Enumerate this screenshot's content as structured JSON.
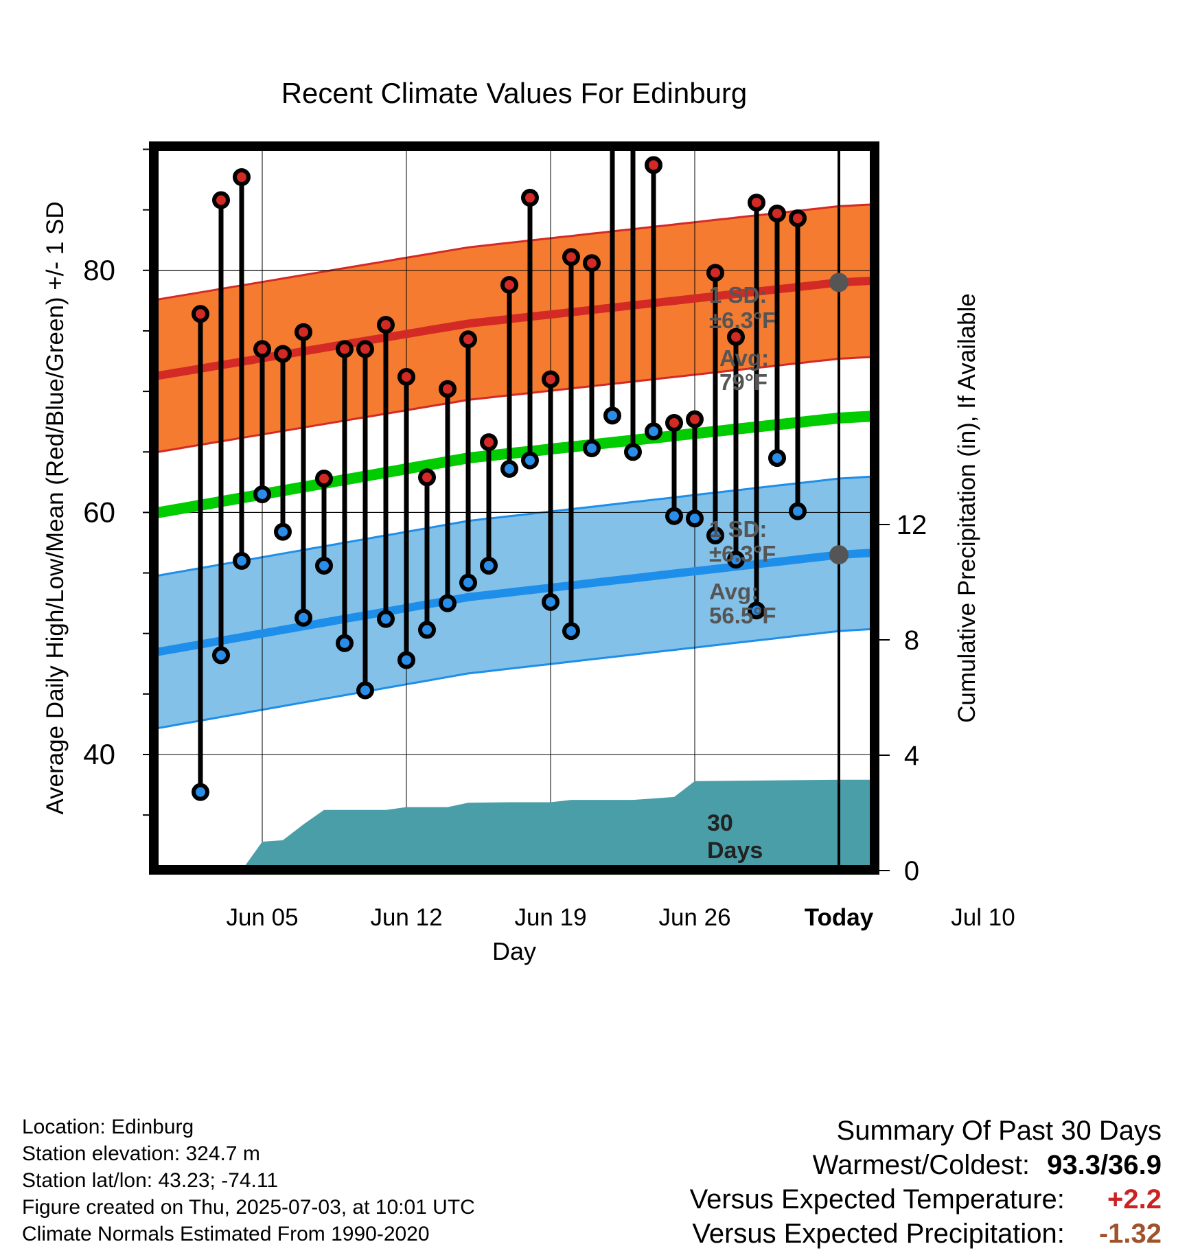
{
  "chart_data": {
    "type": "line",
    "title": "Recent Climate Values For Edinburg",
    "xlabel": "Day",
    "ylabel_left": "Average Daily High/Low/Mean (Red/Blue/Green) +/- 1 SD",
    "ylabel_right": "Cumulative Precipitation (in), If Available",
    "x_tick_labels": [
      "Jun 05",
      "Jun 12",
      "Jun 19",
      "Jun 26",
      "Today",
      "Jul 10"
    ],
    "y_ticks_left": [
      "40",
      "60",
      "80"
    ],
    "y_ticks_right": [
      "0",
      "4",
      "8",
      "12"
    ],
    "ylim_left": [
      30,
      100
    ],
    "ylim_right": [
      0,
      25
    ],
    "x_range_days": [
      "2025-06-01",
      "2025-07-12"
    ],
    "today": "2025-07-03",
    "daily_highs": [
      {
        "date": "2025-06-02",
        "value": 76.4
      },
      {
        "date": "2025-06-03",
        "value": 85.8
      },
      {
        "date": "2025-06-04",
        "value": 87.7
      },
      {
        "date": "2025-06-05",
        "value": 73.5
      },
      {
        "date": "2025-06-06",
        "value": 73.1
      },
      {
        "date": "2025-06-07",
        "value": 74.9
      },
      {
        "date": "2025-06-08",
        "value": 62.8
      },
      {
        "date": "2025-06-09",
        "value": 73.5
      },
      {
        "date": "2025-06-10",
        "value": 73.5
      },
      {
        "date": "2025-06-11",
        "value": 75.5
      },
      {
        "date": "2025-06-12",
        "value": 71.2
      },
      {
        "date": "2025-06-13",
        "value": 62.9
      },
      {
        "date": "2025-06-14",
        "value": 70.2
      },
      {
        "date": "2025-06-15",
        "value": 74.3
      },
      {
        "date": "2025-06-16",
        "value": 65.8
      },
      {
        "date": "2025-06-17",
        "value": 78.8
      },
      {
        "date": "2025-06-18",
        "value": 86.0
      },
      {
        "date": "2025-06-19",
        "value": 71.0
      },
      {
        "date": "2025-06-20",
        "value": 81.1
      },
      {
        "date": "2025-06-21",
        "value": 80.6
      },
      {
        "date": "2025-06-22",
        "value": 93.3
      },
      {
        "date": "2025-06-23",
        "value": 93.2
      },
      {
        "date": "2025-06-24",
        "value": 88.7
      },
      {
        "date": "2025-06-25",
        "value": 67.4
      },
      {
        "date": "2025-06-26",
        "value": 67.7
      },
      {
        "date": "2025-06-27",
        "value": 79.8
      },
      {
        "date": "2025-06-28",
        "value": 74.5
      },
      {
        "date": "2025-06-29",
        "value": 85.6
      },
      {
        "date": "2025-06-30",
        "value": 84.7
      },
      {
        "date": "2025-07-01",
        "value": 84.3
      }
    ],
    "daily_lows": [
      {
        "date": "2025-06-02",
        "value": 36.9
      },
      {
        "date": "2025-06-03",
        "value": 48.2
      },
      {
        "date": "2025-06-04",
        "value": 56.0
      },
      {
        "date": "2025-06-05",
        "value": 61.5
      },
      {
        "date": "2025-06-06",
        "value": 58.4
      },
      {
        "date": "2025-06-07",
        "value": 51.3
      },
      {
        "date": "2025-06-08",
        "value": 55.6
      },
      {
        "date": "2025-06-09",
        "value": 49.2
      },
      {
        "date": "2025-06-10",
        "value": 45.3
      },
      {
        "date": "2025-06-11",
        "value": 51.2
      },
      {
        "date": "2025-06-12",
        "value": 47.8
      },
      {
        "date": "2025-06-13",
        "value": 50.3
      },
      {
        "date": "2025-06-14",
        "value": 52.5
      },
      {
        "date": "2025-06-15",
        "value": 54.2
      },
      {
        "date": "2025-06-16",
        "value": 55.6
      },
      {
        "date": "2025-06-17",
        "value": 63.6
      },
      {
        "date": "2025-06-18",
        "value": 64.3
      },
      {
        "date": "2025-06-19",
        "value": 52.6
      },
      {
        "date": "2025-06-20",
        "value": 50.2
      },
      {
        "date": "2025-06-21",
        "value": 65.3
      },
      {
        "date": "2025-06-22",
        "value": 68.0
      },
      {
        "date": "2025-06-23",
        "value": 65.0
      },
      {
        "date": "2025-06-24",
        "value": 66.7
      },
      {
        "date": "2025-06-25",
        "value": 59.7
      },
      {
        "date": "2025-06-26",
        "value": 59.5
      },
      {
        "date": "2025-06-27",
        "value": 58.1
      },
      {
        "date": "2025-06-28",
        "value": 56.1
      },
      {
        "date": "2025-06-29",
        "value": 51.9
      },
      {
        "date": "2025-06-30",
        "value": 64.5
      },
      {
        "date": "2025-07-01",
        "value": 60.1
      }
    ],
    "normal_high": [
      {
        "date": "2025-06-01",
        "value": 71.6
      },
      {
        "date": "2025-06-15",
        "value": 75.6
      },
      {
        "date": "2025-07-03",
        "value": 79.0
      },
      {
        "date": "2025-07-12",
        "value": 79.8
      }
    ],
    "normal_low": [
      {
        "date": "2025-06-01",
        "value": 48.8
      },
      {
        "date": "2025-06-15",
        "value": 53.0
      },
      {
        "date": "2025-07-03",
        "value": 56.5
      },
      {
        "date": "2025-07-12",
        "value": 57.4
      }
    ],
    "normal_mean": [
      {
        "date": "2025-06-01",
        "value": 60.3
      },
      {
        "date": "2025-06-15",
        "value": 64.5
      },
      {
        "date": "2025-07-03",
        "value": 67.8
      },
      {
        "date": "2025-07-12",
        "value": 68.6
      }
    ],
    "sd_band_f": 6.3,
    "cumulative_precipitation_in": [
      {
        "date": "2025-06-01",
        "value": 0.0
      },
      {
        "date": "2025-06-04",
        "value": 0.0
      },
      {
        "date": "2025-06-05",
        "value": 1.0
      },
      {
        "date": "2025-06-06",
        "value": 1.05
      },
      {
        "date": "2025-06-07",
        "value": 1.6
      },
      {
        "date": "2025-06-08",
        "value": 2.1
      },
      {
        "date": "2025-06-11",
        "value": 2.1
      },
      {
        "date": "2025-06-12",
        "value": 2.2
      },
      {
        "date": "2025-06-14",
        "value": 2.2
      },
      {
        "date": "2025-06-15",
        "value": 2.35
      },
      {
        "date": "2025-06-17",
        "value": 2.37
      },
      {
        "date": "2025-06-19",
        "value": 2.37
      },
      {
        "date": "2025-06-20",
        "value": 2.45
      },
      {
        "date": "2025-06-23",
        "value": 2.45
      },
      {
        "date": "2025-06-25",
        "value": 2.55
      },
      {
        "date": "2025-06-26",
        "value": 3.1
      },
      {
        "date": "2025-07-03",
        "value": 3.15
      },
      {
        "date": "2025-07-12",
        "value": 3.15
      }
    ],
    "annotations": {
      "high_sd_label": "1 SD:",
      "high_sd_value": "±6.3°F",
      "high_avg_label": "Avg:",
      "high_avg_value": "79°F",
      "low_sd_label": "1 SD:",
      "low_sd_value": "±6.3°F",
      "low_avg_label": "Avg:",
      "low_avg_value": "56.5°F",
      "days_number": "30",
      "days_word": "Days"
    },
    "colors": {
      "high_band": "#f47b2f",
      "high_line": "#d42a25",
      "low_band": "#84c1e8",
      "low_line": "#1d8eea",
      "mean_line": "#00cc00",
      "precip_fill": "#4a9ea8",
      "high_marker": "#d42a25",
      "low_marker": "#2a8ee8",
      "annotation_text": "#555555"
    }
  },
  "footer": {
    "location": "Location: Edinburg",
    "elevation": "Station elevation: 324.7 m",
    "latlon": "Station lat/lon: 43.23; -74.11",
    "created": "Figure created on Thu, 2025-07-03, at 10:01 UTC",
    "normals": "Climate Normals Estimated From 1990-2020"
  },
  "summary": {
    "heading": "Summary Of Past 30 Days",
    "warm_cold_label": "Warmest/Coldest:",
    "warm_cold_value": "93.3/36.9",
    "temp_label": "Versus Expected Temperature:",
    "temp_value": "+2.2",
    "temp_color": "#cc2222",
    "precip_label": "Versus Expected Precipitation:",
    "precip_value": "-1.32",
    "precip_color": "#a0522d"
  }
}
